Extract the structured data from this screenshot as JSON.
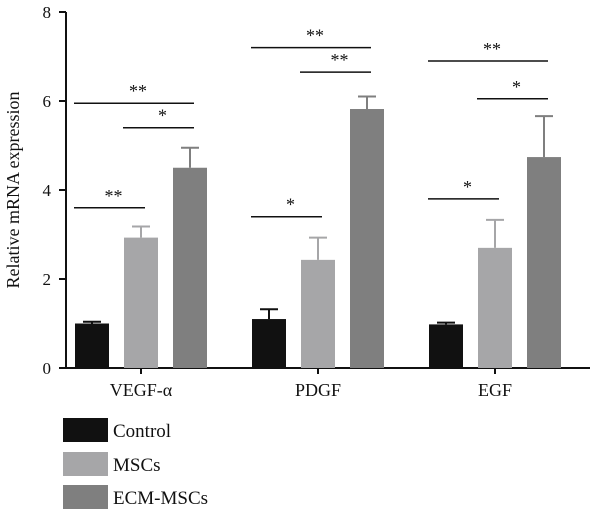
{
  "chart_data": {
    "type": "bar",
    "title": "",
    "xlabel": "",
    "ylabel": "Relative mRNA expression",
    "ylim": [
      0,
      8
    ],
    "yticks": [
      "0",
      "2",
      "4",
      "6",
      "8"
    ],
    "categories": [
      "VEGF-α",
      "PDGF",
      "EGF"
    ],
    "series": [
      {
        "name": "Control",
        "color": "#111111",
        "values": [
          1.0,
          1.1,
          0.98
        ],
        "errors": [
          0.04,
          0.22,
          0.04
        ]
      },
      {
        "name": "MSCs",
        "color": "#a6a6a8",
        "values": [
          2.93,
          2.43,
          2.7
        ],
        "errors": [
          0.25,
          0.5,
          0.63
        ]
      },
      {
        "name": "ECM-MSCs",
        "color": "#7f7f7f",
        "values": [
          4.5,
          5.82,
          4.74
        ],
        "errors": [
          0.45,
          0.28,
          0.92
        ]
      }
    ],
    "significance": [
      {
        "category": 0,
        "from": "Control",
        "to": "MSCs",
        "label": "**",
        "y": 3.6
      },
      {
        "category": 0,
        "from": "Control",
        "to": "ECM-MSCs",
        "label": "**",
        "y": 5.95
      },
      {
        "category": 0,
        "from": "MSCs",
        "to": "ECM-MSCs",
        "label": "*",
        "y": 5.4
      },
      {
        "category": 1,
        "from": "Control",
        "to": "MSCs",
        "label": "*",
        "y": 3.4
      },
      {
        "category": 1,
        "from": "Control",
        "to": "ECM-MSCs",
        "label": "**",
        "y": 7.2
      },
      {
        "category": 1,
        "from": "MSCs",
        "to": "ECM-MSCs",
        "label": "**",
        "y": 6.65
      },
      {
        "category": 2,
        "from": "Control",
        "to": "MSCs",
        "label": "*",
        "y": 3.8
      },
      {
        "category": 2,
        "from": "Control",
        "to": "ECM-MSCs",
        "label": "**",
        "y": 6.9
      },
      {
        "category": 2,
        "from": "MSCs",
        "to": "ECM-MSCs",
        "label": "*",
        "y": 6.05
      }
    ],
    "legend": {
      "position": "bottom-left",
      "entries": [
        "Control",
        "MSCs",
        "ECM-MSCs"
      ]
    },
    "grid": false
  }
}
